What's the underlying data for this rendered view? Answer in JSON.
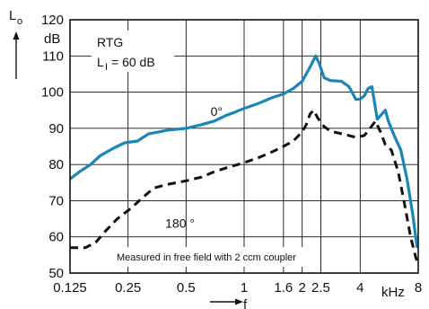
{
  "chart_data": {
    "type": "line",
    "x_scale": "log",
    "xlim": [
      0.125,
      8
    ],
    "ylim": [
      50,
      120
    ],
    "grid": true,
    "xlabel": "f",
    "x_unit": "kHz",
    "ylabel_symbol": "L",
    "ylabel_subscript": "o",
    "y_unit": "dB",
    "x_ticks": [
      {
        "value": 0.125,
        "label": "0.125"
      },
      {
        "value": 0.25,
        "label": "0.25"
      },
      {
        "value": 0.5,
        "label": "0.5"
      },
      {
        "value": 1,
        "label": "1"
      },
      {
        "value": 1.6,
        "label": "1.6"
      },
      {
        "value": 2,
        "label": "2"
      },
      {
        "value": 2.5,
        "label": "2.5"
      },
      {
        "value": 4,
        "label": "4"
      },
      {
        "value": 8,
        "label": "8"
      }
    ],
    "y_ticks": [
      {
        "value": 50,
        "label": "50"
      },
      {
        "value": 60,
        "label": "60"
      },
      {
        "value": 70,
        "label": "70"
      },
      {
        "value": 80,
        "label": "80"
      },
      {
        "value": 90,
        "label": "90"
      },
      {
        "value": 100,
        "label": "100"
      },
      {
        "value": 110,
        "label": "110"
      },
      {
        "value": 120,
        "label": "120"
      }
    ],
    "annotations": {
      "device": "RTG",
      "input_level_prefix": "L",
      "input_level_subscript": "I",
      "input_level_value": "= 60 dB",
      "note": "Measured in free field with 2 ccm coupler"
    },
    "series": [
      {
        "name": "0°",
        "color": "#1a86b6",
        "style": "solid",
        "points": [
          [
            0.125,
            76
          ],
          [
            0.14,
            78
          ],
          [
            0.16,
            80
          ],
          [
            0.18,
            82.5
          ],
          [
            0.21,
            84.5
          ],
          [
            0.24,
            86
          ],
          [
            0.28,
            86.5
          ],
          [
            0.32,
            88.5
          ],
          [
            0.36,
            89
          ],
          [
            0.4,
            89.5
          ],
          [
            0.5,
            90
          ],
          [
            0.6,
            91
          ],
          [
            0.7,
            92
          ],
          [
            0.8,
            93.5
          ],
          [
            0.9,
            94.5
          ],
          [
            1.0,
            95.5
          ],
          [
            1.2,
            97
          ],
          [
            1.4,
            98.5
          ],
          [
            1.6,
            99.5
          ],
          [
            1.8,
            101
          ],
          [
            2.0,
            103
          ],
          [
            2.2,
            107
          ],
          [
            2.35,
            110
          ],
          [
            2.45,
            108
          ],
          [
            2.6,
            104
          ],
          [
            2.8,
            103.2
          ],
          [
            3.2,
            103
          ],
          [
            3.5,
            101.5
          ],
          [
            3.8,
            98
          ],
          [
            4.0,
            98
          ],
          [
            4.2,
            99
          ],
          [
            4.4,
            101
          ],
          [
            4.6,
            101.5
          ],
          [
            4.75,
            97
          ],
          [
            4.9,
            92.5
          ],
          [
            5.2,
            94
          ],
          [
            5.4,
            95
          ],
          [
            5.6,
            92
          ],
          [
            6.0,
            88
          ],
          [
            6.5,
            84
          ],
          [
            7.0,
            76
          ],
          [
            7.5,
            66
          ],
          [
            7.9,
            57
          ]
        ]
      },
      {
        "name": "180 °",
        "color": "#111111",
        "style": "dashed",
        "points": [
          [
            0.125,
            57
          ],
          [
            0.15,
            57
          ],
          [
            0.17,
            58.5
          ],
          [
            0.19,
            61.5
          ],
          [
            0.22,
            65
          ],
          [
            0.26,
            68
          ],
          [
            0.3,
            71
          ],
          [
            0.34,
            73.5
          ],
          [
            0.4,
            74.5
          ],
          [
            0.5,
            75.5
          ],
          [
            0.6,
            76.5
          ],
          [
            0.7,
            78
          ],
          [
            0.8,
            79
          ],
          [
            1.0,
            80.5
          ],
          [
            1.2,
            82
          ],
          [
            1.4,
            83.5
          ],
          [
            1.6,
            85
          ],
          [
            1.8,
            86.5
          ],
          [
            2.0,
            89
          ],
          [
            2.1,
            91
          ],
          [
            2.2,
            94
          ],
          [
            2.3,
            95
          ],
          [
            2.4,
            93
          ],
          [
            2.6,
            90.5
          ],
          [
            2.8,
            89.2
          ],
          [
            3.2,
            88.5
          ],
          [
            3.5,
            88
          ],
          [
            3.8,
            87.5
          ],
          [
            4.2,
            88
          ],
          [
            4.5,
            90
          ],
          [
            4.8,
            92
          ],
          [
            5.1,
            89
          ],
          [
            5.4,
            85.5
          ],
          [
            5.8,
            84
          ],
          [
            6.3,
            78
          ],
          [
            6.8,
            69
          ],
          [
            7.3,
            60
          ],
          [
            7.8,
            54
          ],
          [
            8.0,
            53
          ]
        ]
      }
    ],
    "series_label_positions": [
      {
        "text": "0°",
        "x": 0.67,
        "y": 93.5
      },
      {
        "text": "180 °",
        "x": 0.39,
        "y": 62.5
      }
    ]
  }
}
